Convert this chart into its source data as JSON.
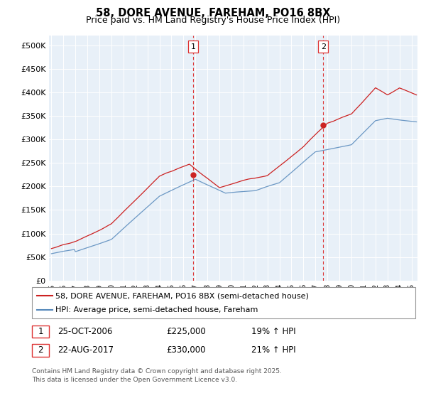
{
  "title": "58, DORE AVENUE, FAREHAM, PO16 8BX",
  "subtitle": "Price paid vs. HM Land Registry's House Price Index (HPI)",
  "ylabel_ticks": [
    "£0",
    "£50K",
    "£100K",
    "£150K",
    "£200K",
    "£250K",
    "£300K",
    "£350K",
    "£400K",
    "£450K",
    "£500K"
  ],
  "ytick_values": [
    0,
    50000,
    100000,
    150000,
    200000,
    250000,
    300000,
    350000,
    400000,
    450000,
    500000
  ],
  "ylim": [
    0,
    520000
  ],
  "xlim_start": 1994.8,
  "xlim_end": 2025.5,
  "marker1_x": 2006.82,
  "marker1_y": 225000,
  "marker2_x": 2017.65,
  "marker2_y": 330000,
  "legend_line1": "58, DORE AVENUE, FAREHAM, PO16 8BX (semi-detached house)",
  "legend_line2": "HPI: Average price, semi-detached house, Fareham",
  "annotation1_date": "25-OCT-2006",
  "annotation1_price": "£225,000",
  "annotation1_hpi": "19% ↑ HPI",
  "annotation2_date": "22-AUG-2017",
  "annotation2_price": "£330,000",
  "annotation2_hpi": "21% ↑ HPI",
  "footer": "Contains HM Land Registry data © Crown copyright and database right 2025.\nThis data is licensed under the Open Government Licence v3.0.",
  "line_color_red": "#cc2222",
  "line_color_blue": "#5588bb",
  "chart_bg": "#e8f0f8",
  "background_color": "#ffffff",
  "grid_color": "#ffffff",
  "dashed_color": "#dd3333"
}
